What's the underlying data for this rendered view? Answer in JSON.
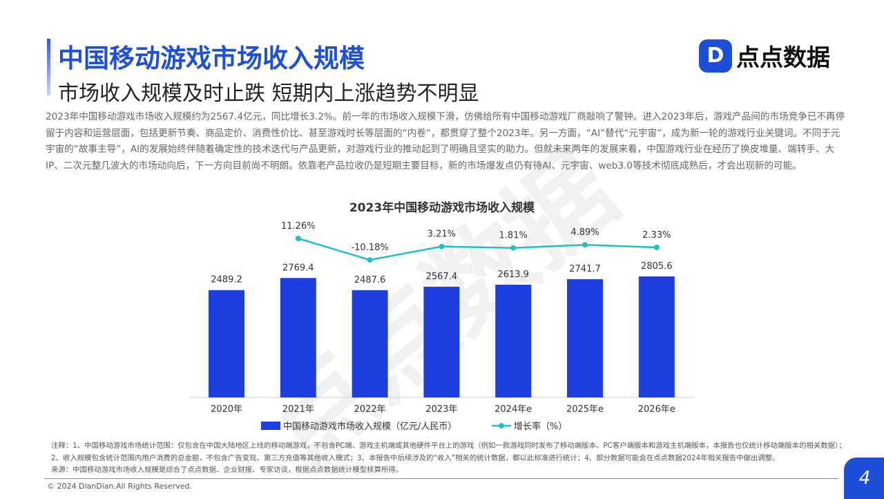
{
  "header": {
    "title": "中国移动游戏市场收入规模",
    "subtitle": "市场收入规模及时止跌 短期内上涨趋势不明显",
    "logo_mark": "D",
    "logo_text": "点点数据"
  },
  "body_text": "2023年中国移动游戏市场收入规模约为2567.4亿元，同比增长3.2%。前一年的市场收入规模下滑，仿佛给所有中国移动游戏厂商敲响了警钟。进入2023年后，游戏产品间的市场竞争已不再停留于内容和运营层面，包括更新节奏、商品定价、消费性价比、甚至游戏时长等层面的“内卷”，都贯穿了整个2023年。另一方面，“AI”替代“元宇宙”，成为新一轮的游戏行业关键词。不同于元宇宙的“故事主导”，AI的发展始终伴随着确定性的技术迭代与产品更新，对游戏行业的推动起到了明确且坚实的助力。但就未来两年的发展来看，中国游戏行业在经历了换皮堆量、端转手、大IP、二次元整几波大的市场动向后，下一方向目前尚不明朗。依靠老产品拉收仍是短期主要目标，新的市场爆发点仍有待AI、元宇宙、web3.0等技术彻底成熟后，才会出现新的可能。",
  "chart_data": {
    "type": "bar+line",
    "title": "2023年中国移动游戏市场收入规模",
    "categories": [
      "2020年",
      "2021年",
      "2022年",
      "2023年",
      "2024年e",
      "2025年e",
      "2026年e"
    ],
    "series": [
      {
        "name": "中国移动游戏市场收入规模（亿元/人民币）",
        "type": "bar",
        "color": "#1d3fe0",
        "values": [
          2489.2,
          2769.4,
          2487.6,
          2567.4,
          2613.9,
          2741.7,
          2805.6
        ],
        "labels": [
          "2489.2",
          "2769.4",
          "2487.6",
          "2567.4",
          "2613.9",
          "2741.7",
          "2805.6"
        ]
      },
      {
        "name": "增长率（%）",
        "type": "line",
        "color": "#1fbfc4",
        "values": [
          null,
          11.26,
          -10.18,
          3.21,
          1.81,
          4.89,
          2.33
        ],
        "labels": [
          "",
          "11.26%",
          "-10.18%",
          "3.21%",
          "1.81%",
          "4.89%",
          "2.33%"
        ]
      }
    ],
    "legend": "bottom",
    "grid": false
  },
  "notes": {
    "line1": "注释：1、中国移动游戏市场统计范围：仅包含在中国大陆地区上线的移动端游戏，不包含PC端、游戏主机端或其他硬件平台上的游戏（例如一款游戏同时发布了移动端版本、PC客户端版本和游戏主机端版本，本报告也仅统计移动端版本的相关数据）；2、收入规模包含统计范围内用户消费的总金额，不包含广告变现、第三方充值等其他收入模式；3、本报告中后续涉及的“收入”相关的统计数据，都以此标准进行统计；4、部分数据可能会在点点数据2024年相关报告中做出调整。",
    "line2": "来源：中国移动游戏市场收入规模是综合了点点数据、企业财报、专家访谈，根据点点数据统计模型核算所得。"
  },
  "footer": {
    "copyright": "© 2024 DianDian.All Rights Reserved.",
    "page": "4",
    "watermark": "点点数据"
  }
}
